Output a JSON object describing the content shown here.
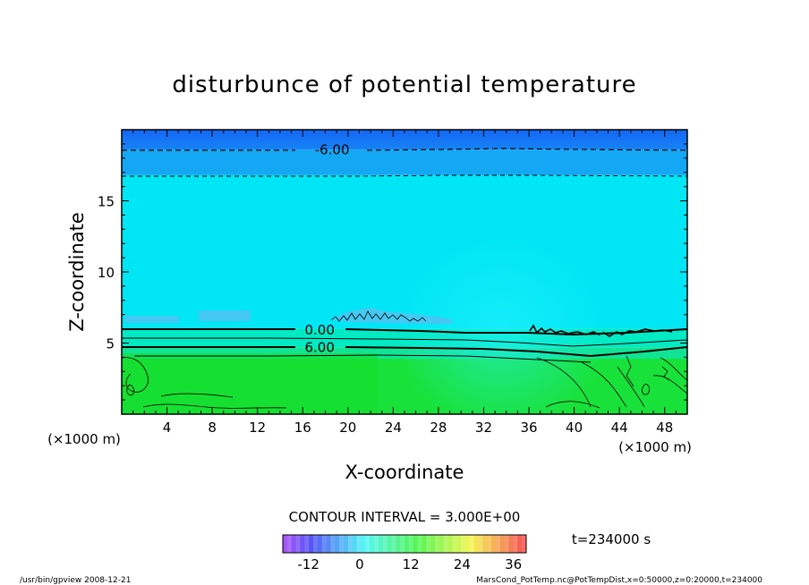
{
  "chart_data": {
    "type": "heatmap",
    "title": "disturbunce of potential temperature",
    "xlabel": "X-coordinate",
    "ylabel": "Z-coordinate",
    "x_unit_left": "(×1000 m)",
    "x_unit_right": "(×1000 m)",
    "xlim": [
      0,
      50
    ],
    "ylim": [
      0,
      20
    ],
    "x_ticks": [
      "4",
      "8",
      "12",
      "16",
      "20",
      "24",
      "28",
      "32",
      "36",
      "40",
      "44",
      "48"
    ],
    "y_ticks": [
      "5",
      "10",
      "15"
    ],
    "contour_labels": [
      {
        "text": "-6.00",
        "x": 18.6,
        "z": 18.6
      },
      {
        "text": "0.00",
        "x": 17.5,
        "z": 5.9
      },
      {
        "text": "6.00",
        "x": 17.5,
        "z": 4.7
      }
    ],
    "bands": [
      {
        "z_from": 18.6,
        "z_to": 20.0,
        "value": -9,
        "color": "#1470f6"
      },
      {
        "z_from": 16.8,
        "z_to": 18.6,
        "value": -6,
        "color": "#14a8f4"
      },
      {
        "z_from": 6.0,
        "z_to": 16.8,
        "value": -3,
        "color": "#00e6f4"
      },
      {
        "z_from": 4.7,
        "z_to": 6.0,
        "value": 0,
        "color": "#00eac4"
      },
      {
        "z_from": 3.9,
        "z_to": 4.7,
        "value": 3,
        "color": "#10e494"
      },
      {
        "z_from": 0.0,
        "z_to": 3.9,
        "value": 6,
        "color": "#18e23a"
      }
    ],
    "contour_interval": "CONTOUR INTERVAL = 3.000E+00",
    "colorbar": {
      "vmin": -18,
      "vmax": 39,
      "tick_labels": [
        "-12",
        "0",
        "12",
        "24",
        "36"
      ],
      "tick_values": [
        -12,
        0,
        12,
        24,
        36
      ]
    },
    "time_label": "t=234000 s"
  },
  "footer": {
    "left": "/usr/bin/gpview   2008-12-21",
    "right": "MarsCond_PotTemp.nc@PotTempDist,x=0:50000,z=0:20000,t=234000"
  }
}
